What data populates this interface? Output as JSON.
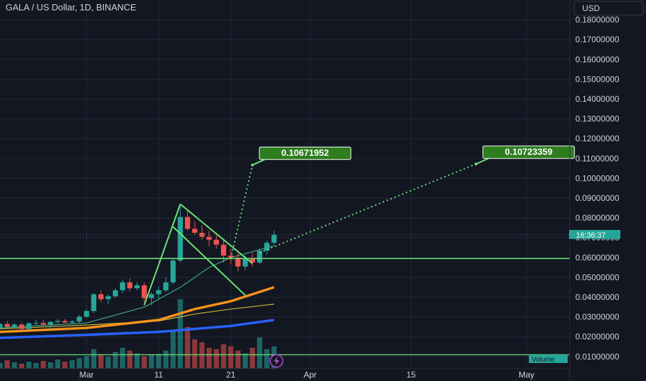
{
  "header": {
    "title": "GALA / US Dollar, 1D, BINANCE",
    "currency_button": "USD"
  },
  "timer": "16:36:37",
  "volume_label": "Volume",
  "colors": {
    "background": "#131722",
    "grid": "#242838",
    "up": "#26a69a",
    "down": "#ef5350",
    "pattern": "#6be675",
    "ma_orange": "#f7931a",
    "ma_yellow": "#c8b93a",
    "ma_blue": "#2962ff",
    "ma_teal": "#3fa78a",
    "label_bg": "#2e7d1f"
  },
  "chart_data": {
    "type": "candlestick",
    "title": "GALA / US Dollar, 1D, BINANCE",
    "y_axis": {
      "min": 0.004,
      "max": 0.19,
      "ticks": [
        0.01,
        0.02,
        0.03,
        0.04,
        0.05,
        0.06,
        0.07,
        0.08,
        0.09,
        0.1,
        0.11,
        0.12,
        0.13,
        0.14,
        0.15,
        0.16,
        0.17,
        0.18
      ],
      "tick_labels": [
        "0.01000000",
        "0.02000000",
        "0.03000000",
        "0.04000000",
        "0.05000000",
        "0.06000000",
        "0.07000000",
        "0.08000000",
        "0.09000000",
        "0.10000000",
        "0.11000000",
        "0.12000000",
        "0.13000000",
        "0.14000000",
        "0.15000000",
        "0.16000000",
        "0.17000000",
        "0.18000000"
      ]
    },
    "x_axis": {
      "start": "2022-02-17",
      "end": "2022-05-07",
      "ticks": [
        {
          "date": "2022-03-01",
          "label": "Mar"
        },
        {
          "date": "2022-03-11",
          "label": "11"
        },
        {
          "date": "2022-03-21",
          "label": "21"
        },
        {
          "date": "2022-04-01",
          "label": "Apr"
        },
        {
          "date": "2022-04-15",
          "label": "15"
        },
        {
          "date": "2022-05-01",
          "label": "May"
        }
      ]
    },
    "candles": [
      {
        "date": "2022-02-17",
        "o": 0.0245,
        "h": 0.027,
        "l": 0.024,
        "c": 0.0265
      },
      {
        "date": "2022-02-18",
        "o": 0.0265,
        "h": 0.028,
        "l": 0.024,
        "c": 0.025
      },
      {
        "date": "2022-02-19",
        "o": 0.025,
        "h": 0.027,
        "l": 0.0245,
        "c": 0.0262
      },
      {
        "date": "2022-02-20",
        "o": 0.0262,
        "h": 0.027,
        "l": 0.0235,
        "c": 0.024
      },
      {
        "date": "2022-02-21",
        "o": 0.024,
        "h": 0.0275,
        "l": 0.0235,
        "c": 0.0268
      },
      {
        "date": "2022-02-22",
        "o": 0.0268,
        "h": 0.0285,
        "l": 0.026,
        "c": 0.027
      },
      {
        "date": "2022-02-23",
        "o": 0.027,
        "h": 0.0285,
        "l": 0.0255,
        "c": 0.0262
      },
      {
        "date": "2022-02-24",
        "o": 0.0262,
        "h": 0.028,
        "l": 0.024,
        "c": 0.0275
      },
      {
        "date": "2022-02-25",
        "o": 0.0275,
        "h": 0.029,
        "l": 0.0265,
        "c": 0.028
      },
      {
        "date": "2022-02-26",
        "o": 0.028,
        "h": 0.029,
        "l": 0.027,
        "c": 0.0272
      },
      {
        "date": "2022-02-27",
        "o": 0.0272,
        "h": 0.0285,
        "l": 0.0262,
        "c": 0.0278
      },
      {
        "date": "2022-02-28",
        "o": 0.0278,
        "h": 0.031,
        "l": 0.027,
        "c": 0.0302
      },
      {
        "date": "2022-03-01",
        "o": 0.0302,
        "h": 0.034,
        "l": 0.0295,
        "c": 0.033
      },
      {
        "date": "2022-03-02",
        "o": 0.033,
        "h": 0.042,
        "l": 0.032,
        "c": 0.0415
      },
      {
        "date": "2022-03-03",
        "o": 0.0415,
        "h": 0.0435,
        "l": 0.0375,
        "c": 0.039
      },
      {
        "date": "2022-03-04",
        "o": 0.039,
        "h": 0.0415,
        "l": 0.0365,
        "c": 0.0405
      },
      {
        "date": "2022-03-05",
        "o": 0.0405,
        "h": 0.0445,
        "l": 0.0395,
        "c": 0.0435
      },
      {
        "date": "2022-03-06",
        "o": 0.0435,
        "h": 0.049,
        "l": 0.042,
        "c": 0.0475
      },
      {
        "date": "2022-03-07",
        "o": 0.0475,
        "h": 0.0495,
        "l": 0.043,
        "c": 0.0445
      },
      {
        "date": "2022-03-08",
        "o": 0.0445,
        "h": 0.0475,
        "l": 0.0435,
        "c": 0.046
      },
      {
        "date": "2022-03-09",
        "o": 0.046,
        "h": 0.0475,
        "l": 0.0375,
        "c": 0.0395
      },
      {
        "date": "2022-03-10",
        "o": 0.0395,
        "h": 0.0425,
        "l": 0.036,
        "c": 0.0415
      },
      {
        "date": "2022-03-11",
        "o": 0.0415,
        "h": 0.0455,
        "l": 0.039,
        "c": 0.0435
      },
      {
        "date": "2022-03-12",
        "o": 0.0435,
        "h": 0.05,
        "l": 0.0425,
        "c": 0.0475
      },
      {
        "date": "2022-03-13",
        "o": 0.0475,
        "h": 0.0595,
        "l": 0.0465,
        "c": 0.0585
      },
      {
        "date": "2022-03-14",
        "o": 0.0585,
        "h": 0.0865,
        "l": 0.0575,
        "c": 0.0805
      },
      {
        "date": "2022-03-15",
        "o": 0.0805,
        "h": 0.0835,
        "l": 0.0735,
        "c": 0.0745
      },
      {
        "date": "2022-03-16",
        "o": 0.0745,
        "h": 0.0785,
        "l": 0.0715,
        "c": 0.0725
      },
      {
        "date": "2022-03-17",
        "o": 0.0725,
        "h": 0.0765,
        "l": 0.069,
        "c": 0.0705
      },
      {
        "date": "2022-03-18",
        "o": 0.0705,
        "h": 0.0735,
        "l": 0.0655,
        "c": 0.069
      },
      {
        "date": "2022-03-19",
        "o": 0.069,
        "h": 0.0725,
        "l": 0.0645,
        "c": 0.0665
      },
      {
        "date": "2022-03-20",
        "o": 0.0665,
        "h": 0.069,
        "l": 0.0575,
        "c": 0.061
      },
      {
        "date": "2022-03-21",
        "o": 0.061,
        "h": 0.0645,
        "l": 0.0565,
        "c": 0.06
      },
      {
        "date": "2022-03-22",
        "o": 0.06,
        "h": 0.0625,
        "l": 0.053,
        "c": 0.0555
      },
      {
        "date": "2022-03-23",
        "o": 0.0555,
        "h": 0.061,
        "l": 0.0535,
        "c": 0.0595
      },
      {
        "date": "2022-03-24",
        "o": 0.0595,
        "h": 0.0625,
        "l": 0.0555,
        "c": 0.0575
      },
      {
        "date": "2022-03-25",
        "o": 0.0575,
        "h": 0.0645,
        "l": 0.0565,
        "c": 0.0635
      },
      {
        "date": "2022-03-26",
        "o": 0.0635,
        "h": 0.0685,
        "l": 0.0615,
        "c": 0.0675
      },
      {
        "date": "2022-03-27",
        "o": 0.0675,
        "h": 0.0735,
        "l": 0.0665,
        "c": 0.0715
      }
    ],
    "volume": {
      "max": 100,
      "values": [
        8,
        12,
        9,
        7,
        10,
        8,
        11,
        9,
        13,
        10,
        12,
        15,
        18,
        28,
        20,
        17,
        24,
        30,
        26,
        22,
        18,
        20,
        21,
        26,
        55,
        100,
        60,
        42,
        38,
        30,
        28,
        35,
        32,
        26,
        22,
        30,
        45,
        28,
        32
      ]
    },
    "moving_averages": [
      {
        "color": "#3fa78a",
        "points": [
          [
            "2022-02-17",
            0.0245
          ],
          [
            "2022-03-01",
            0.027
          ],
          [
            "2022-03-09",
            0.035
          ],
          [
            "2022-03-14",
            0.045
          ],
          [
            "2022-03-18",
            0.055
          ],
          [
            "2022-03-21",
            0.06
          ],
          [
            "2022-03-27",
            0.066
          ]
        ]
      },
      {
        "color": "#c8b93a",
        "points": [
          [
            "2022-02-17",
            0.024
          ],
          [
            "2022-03-01",
            0.026
          ],
          [
            "2022-03-11",
            0.028
          ],
          [
            "2022-03-16",
            0.0315
          ],
          [
            "2022-03-21",
            0.034
          ],
          [
            "2022-03-27",
            0.0365
          ]
        ]
      },
      {
        "color": "#f7931a",
        "points": [
          [
            "2022-02-17",
            0.0225
          ],
          [
            "2022-03-01",
            0.0245
          ],
          [
            "2022-03-11",
            0.0285
          ],
          [
            "2022-03-16",
            0.034
          ],
          [
            "2022-03-21",
            0.038
          ],
          [
            "2022-03-27",
            0.045
          ]
        ]
      },
      {
        "color": "#2962ff",
        "points": [
          [
            "2022-02-17",
            0.0195
          ],
          [
            "2022-03-01",
            0.021
          ],
          [
            "2022-03-11",
            0.0225
          ],
          [
            "2022-03-21",
            0.0255
          ],
          [
            "2022-03-27",
            0.0285
          ]
        ]
      }
    ],
    "drawings": {
      "horizontal_line_level": 0.0595,
      "flag_pole": [
        [
          "2022-03-09",
          0.036
        ],
        [
          "2022-03-14",
          0.087
        ]
      ],
      "flag_upper": [
        [
          "2022-03-14",
          0.087
        ],
        [
          "2022-03-24",
          0.057
        ]
      ],
      "flag_lower": [
        [
          "2022-03-13",
          0.0755
        ],
        [
          "2022-03-23",
          0.041
        ]
      ],
      "projections": [
        {
          "from": [
            "2022-03-21",
            0.0595
          ],
          "to": [
            "2022-03-24",
            0.10671952
          ],
          "label": "0.10671952"
        },
        {
          "from": [
            "2022-03-25",
            0.0625
          ],
          "to": [
            "2022-04-24",
            0.10723359
          ],
          "label": "0.10723359"
        }
      ]
    },
    "current_price_level": 0.0715
  }
}
